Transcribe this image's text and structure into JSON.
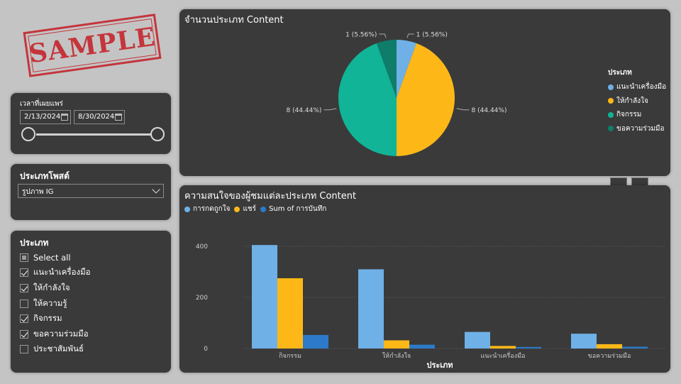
{
  "stamp": {
    "text": "SAMPLE"
  },
  "date_slicer": {
    "title": "เวลาที่เผยแพร่",
    "start": "2/13/2024",
    "end": "8/30/2024"
  },
  "post_type_slicer": {
    "title": "ประเภทโพสต์",
    "selected": "รูปภาพ IG"
  },
  "category_slicer": {
    "title": "ประเภท",
    "items": [
      {
        "label": "Select all",
        "state": "partial"
      },
      {
        "label": "แนะนำเครื่องมือ",
        "state": "checked"
      },
      {
        "label": "ให้กำลังใจ",
        "state": "checked"
      },
      {
        "label": "ให้ความรู้",
        "state": "unchecked"
      },
      {
        "label": "กิจกรรม",
        "state": "checked"
      },
      {
        "label": "ขอความร่วมมือ",
        "state": "checked"
      },
      {
        "label": "ประชาสัมพันธ์",
        "state": "unchecked"
      }
    ]
  },
  "chart_data": [
    {
      "type": "pie",
      "title": "จำนวนประเภท Content",
      "legend_title": "ประเภท",
      "legend_position": "right",
      "slices": [
        {
          "name": "แนะนำเครื่องมือ",
          "value": 1,
          "label": "1 (5.56%)",
          "color": "#6fb0e6"
        },
        {
          "name": "ให้กำลังใจ",
          "value": 8,
          "label": "8 (44.44%)",
          "color": "#fdb817"
        },
        {
          "name": "กิจกรรม",
          "value": 8,
          "label": "8 (44.44%)",
          "color": "#11b496"
        },
        {
          "name": "ขอความร่วมมือ",
          "value": 1,
          "label": "1 (5.56%)",
          "color": "#0f7d69"
        }
      ]
    },
    {
      "type": "bar",
      "title": "ความสนใจของผู้ชมแต่ละประเภท Content",
      "xlabel": "ประเภท",
      "ylabel": "",
      "ylim": [
        0,
        400
      ],
      "yticks": [
        0,
        200,
        400
      ],
      "legend_position": "top-left",
      "categories": [
        "กิจกรรม",
        "ให้กำลังใจ",
        "แนะนำเครื่องมือ",
        "ขอความร่วมมือ"
      ],
      "series": [
        {
          "name": "การกดถูกใจ",
          "color": "#6fb0e6",
          "values": [
            405,
            310,
            65,
            58
          ]
        },
        {
          "name": "แชร์",
          "color": "#fdb817",
          "values": [
            275,
            32,
            10,
            17
          ]
        },
        {
          "name": "Sum of การบันทึก",
          "color": "#2c7ac9",
          "values": [
            53,
            15,
            6,
            7
          ]
        }
      ]
    }
  ]
}
